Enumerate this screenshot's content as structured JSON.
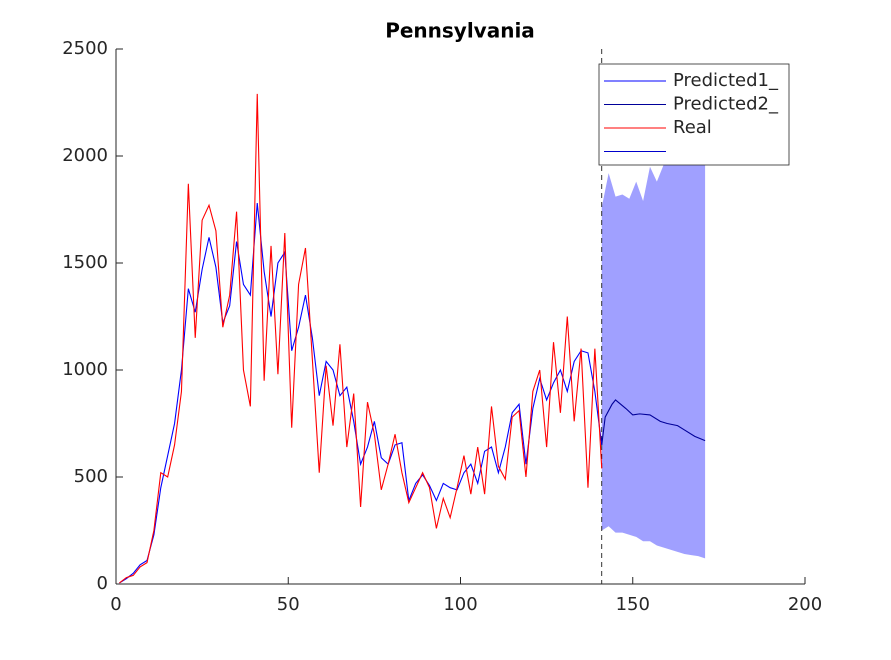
{
  "chart_data": {
    "type": "line",
    "title": "Pennsylvania",
    "xlim": [
      0,
      200
    ],
    "xticks": [
      0,
      50,
      100,
      150,
      200
    ],
    "ylim": [
      0,
      2500
    ],
    "yticks": [
      0,
      500,
      1000,
      1500,
      2000,
      2500
    ],
    "grid": false,
    "vline": 141,
    "legend": "upper right",
    "series": [
      {
        "name": "Predicted1_",
        "color": "#0000ff",
        "x": [
          1,
          3,
          5,
          7,
          9,
          11,
          13,
          15,
          17,
          19,
          21,
          23,
          25,
          27,
          29,
          31,
          33,
          35,
          37,
          39,
          41,
          43,
          45,
          47,
          49,
          51,
          53,
          55,
          57,
          59,
          61,
          63,
          65,
          67,
          69,
          71,
          73,
          75,
          77,
          79,
          81,
          83,
          85,
          87,
          89,
          91,
          93,
          95,
          97,
          99,
          101,
          103,
          105,
          107,
          109,
          111,
          113,
          115,
          117,
          119,
          121,
          123,
          125,
          127,
          129,
          131,
          133,
          135,
          137,
          139,
          141
        ],
        "values": [
          5,
          25,
          50,
          90,
          110,
          230,
          450,
          600,
          750,
          1000,
          1380,
          1270,
          1470,
          1620,
          1480,
          1220,
          1300,
          1600,
          1400,
          1350,
          1780,
          1460,
          1250,
          1500,
          1550,
          1090,
          1200,
          1350,
          1150,
          880,
          1040,
          1000,
          880,
          920,
          760,
          560,
          640,
          760,
          590,
          560,
          650,
          660,
          390,
          470,
          510,
          460,
          390,
          470,
          450,
          440,
          520,
          560,
          470,
          620,
          640,
          520,
          640,
          800,
          840,
          560,
          820,
          960,
          860,
          940,
          1000,
          900,
          1040,
          1090,
          1080,
          900,
          650
        ]
      },
      {
        "name": "Predicted2_",
        "color": "#000099",
        "x": [
          141,
          142,
          144,
          145,
          148,
          150,
          152,
          155,
          158,
          160,
          163,
          165,
          168,
          171
        ],
        "values": [
          650,
          780,
          840,
          860,
          820,
          790,
          795,
          790,
          760,
          750,
          740,
          720,
          690,
          670
        ]
      },
      {
        "name": "Real",
        "color": "#ff0000",
        "x": [
          1,
          3,
          5,
          7,
          9,
          11,
          13,
          15,
          17,
          19,
          21,
          23,
          25,
          27,
          29,
          31,
          33,
          35,
          37,
          39,
          41,
          43,
          45,
          47,
          49,
          51,
          53,
          55,
          57,
          59,
          61,
          63,
          65,
          67,
          69,
          71,
          73,
          75,
          77,
          79,
          81,
          83,
          85,
          87,
          89,
          91,
          93,
          95,
          97,
          99,
          101,
          103,
          105,
          107,
          109,
          111,
          113,
          115,
          117,
          119,
          121,
          123,
          125,
          127,
          129,
          131,
          133,
          135,
          137,
          139,
          141
        ],
        "values": [
          5,
          30,
          40,
          80,
          100,
          250,
          520,
          500,
          650,
          900,
          1870,
          1150,
          1700,
          1770,
          1650,
          1200,
          1350,
          1740,
          1000,
          830,
          2290,
          950,
          1580,
          980,
          1640,
          730,
          1400,
          1570,
          1050,
          520,
          1020,
          740,
          1120,
          640,
          890,
          360,
          850,
          700,
          440,
          560,
          700,
          520,
          380,
          450,
          520,
          450,
          260,
          400,
          310,
          450,
          600,
          420,
          640,
          420,
          830,
          550,
          490,
          780,
          810,
          500,
          900,
          1000,
          640,
          1130,
          800,
          1250,
          760,
          1100,
          450,
          1100,
          540
        ]
      }
    ],
    "band": {
      "color": "#a0a0ff",
      "edgecolor": "#0000cc",
      "x": [
        141,
        143,
        145,
        147,
        149,
        151,
        153,
        155,
        157,
        159,
        161,
        163,
        165,
        167,
        169,
        171
      ],
      "upper": [
        1760,
        1920,
        1810,
        1820,
        1800,
        1880,
        1790,
        1950,
        1880,
        1960,
        1970,
        2010,
        2050,
        2100,
        2200,
        2250
      ],
      "lower": [
        250,
        270,
        240,
        240,
        230,
        220,
        200,
        200,
        180,
        170,
        160,
        150,
        140,
        135,
        130,
        120
      ]
    }
  }
}
